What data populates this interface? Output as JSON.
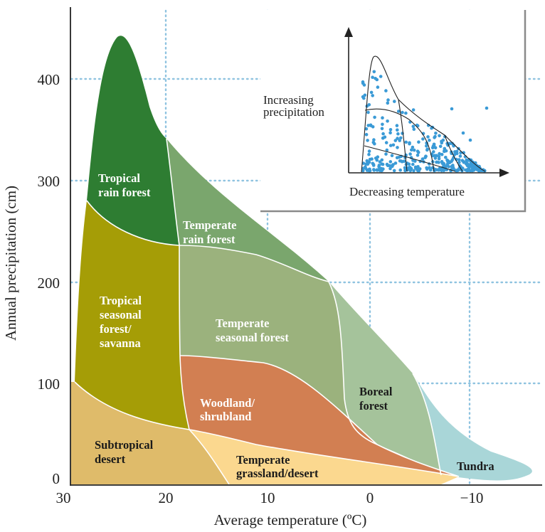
{
  "axes": {
    "x_title": "Average temperature (ºC)",
    "y_title": "Annual precipitation (cm)",
    "x_ticks": [
      "30",
      "20",
      "10",
      "0",
      "−10"
    ],
    "y_ticks": [
      "0",
      "100",
      "200",
      "300",
      "400"
    ]
  },
  "biomes": {
    "tropical_rain_forest": {
      "line1": "Tropical",
      "line2": "rain forest",
      "color": "#2e7d32"
    },
    "temperate_rain_forest": {
      "line1": "Temperate",
      "line2": "rain forest",
      "color": "#7aa66d"
    },
    "tropical_seasonal": {
      "line1": "Tropical",
      "line2": "seasonal",
      "line3": "forest/",
      "line4": "savanna",
      "color": "#a59d06"
    },
    "temperate_seasonal": {
      "line1": "Temperate",
      "line2": "seasonal forest",
      "color": "#9bb27d"
    },
    "woodland": {
      "line1": "Woodland/",
      "line2": "shrubland",
      "color": "#d27f52"
    },
    "boreal": {
      "line1": "Boreal",
      "line2": "forest",
      "color": "#a5c39b"
    },
    "subtropical_desert": {
      "line1": "Subtropical",
      "line2": "desert",
      "color": "#dfbb6a"
    },
    "temperate_grassland": {
      "line1": "Temperate",
      "line2": "grassland/desert",
      "color": "#fbd88f"
    },
    "tundra": {
      "line1": "Tundra",
      "color": "#a9d6d8"
    }
  },
  "inset": {
    "y_label_line1": "Increasing",
    "y_label_line2": "precipitation",
    "x_label": "Decreasing temperature",
    "dot_color": "#3a9ad6"
  }
}
